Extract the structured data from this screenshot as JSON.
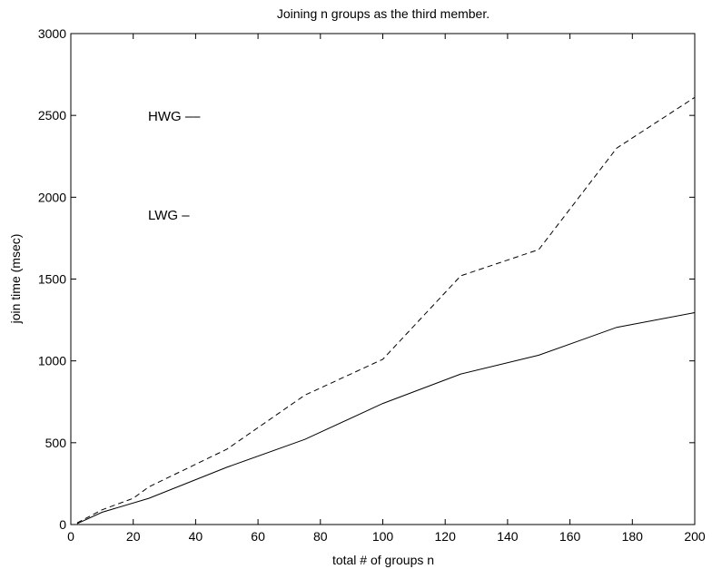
{
  "chart_data": {
    "type": "line",
    "title": "Joining n groups as the third member.",
    "xlabel": "total # of groups n",
    "ylabel": "join time (msec)",
    "xlim": [
      0,
      200
    ],
    "ylim": [
      0,
      3000
    ],
    "xticks": [
      0,
      20,
      40,
      60,
      80,
      100,
      120,
      140,
      160,
      180,
      200
    ],
    "yticks": [
      0,
      500,
      1000,
      1500,
      2000,
      2500,
      3000
    ],
    "grid": false,
    "legend": "top-left",
    "series": [
      {
        "name": "HWG",
        "legend_text": "HWG ––",
        "style": "dashed",
        "color": "#000000",
        "x": [
          2,
          10,
          20,
          25,
          50,
          75,
          100,
          125,
          150,
          175,
          200
        ],
        "y": [
          10,
          90,
          160,
          230,
          460,
          790,
          1010,
          1520,
          1680,
          2300,
          2610
        ]
      },
      {
        "name": "LWG",
        "legend_text": "LWG –",
        "style": "solid",
        "color": "#000000",
        "x": [
          2,
          10,
          25,
          50,
          75,
          100,
          125,
          150,
          175,
          200
        ],
        "y": [
          5,
          75,
          160,
          350,
          520,
          740,
          920,
          1035,
          1205,
          1295
        ]
      }
    ]
  }
}
